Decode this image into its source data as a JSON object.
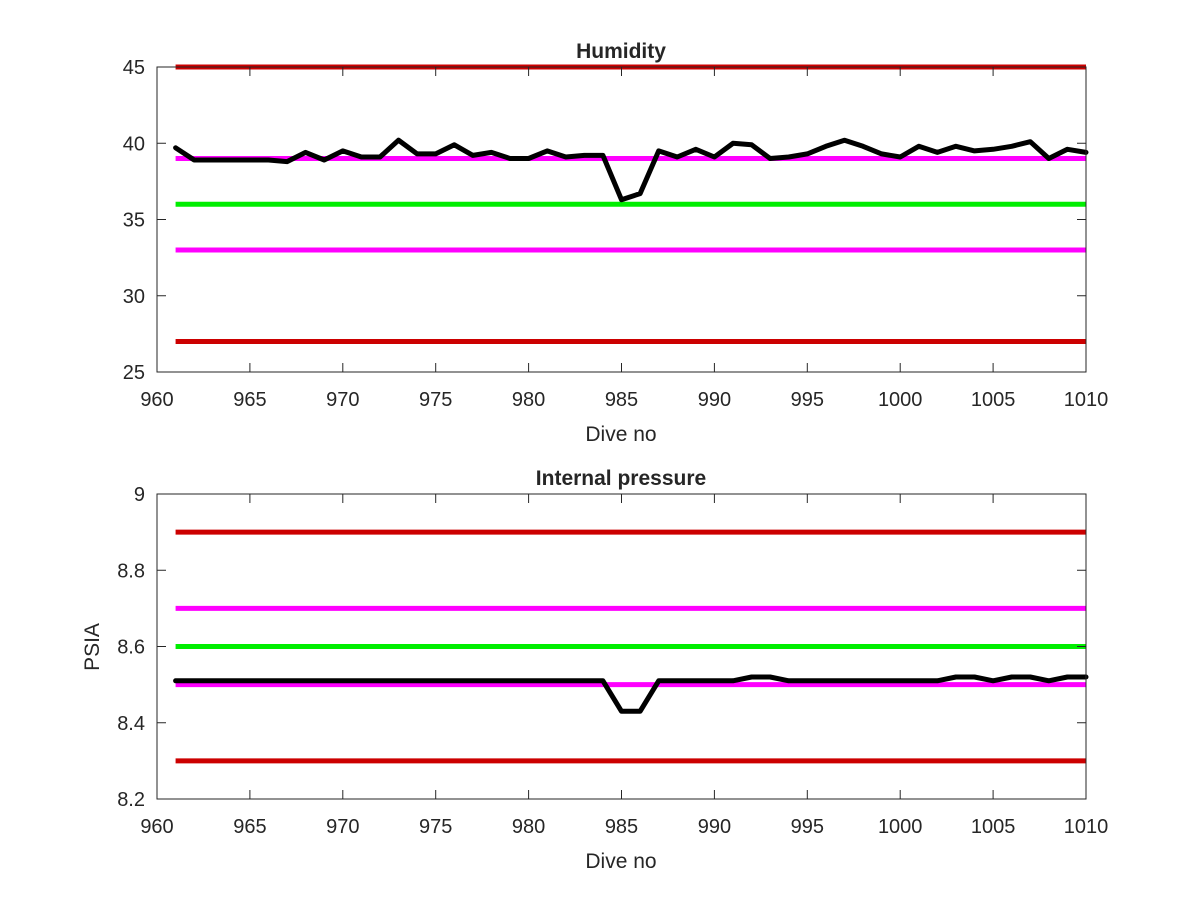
{
  "figure": {
    "background": "#ffffff"
  },
  "chart_data": [
    {
      "type": "line",
      "title": "Humidity",
      "xlabel": "Dive no",
      "ylabel": "",
      "xlim": [
        960,
        1010
      ],
      "ylim": [
        25,
        45
      ],
      "xticks": [
        960,
        965,
        970,
        975,
        980,
        985,
        990,
        995,
        1000,
        1005,
        1010
      ],
      "yticks": [
        25,
        30,
        35,
        40,
        45
      ],
      "grid": false,
      "legend": "none",
      "reference_lines": [
        {
          "y": 45,
          "color": "#cc0000"
        },
        {
          "y": 39,
          "color": "#ff00ff"
        },
        {
          "y": 36,
          "color": "#00ee00"
        },
        {
          "y": 33,
          "color": "#ff00ff"
        },
        {
          "y": 27,
          "color": "#cc0000"
        }
      ],
      "series": [
        {
          "color": "#000000",
          "x": [
            961,
            962,
            963,
            964,
            965,
            966,
            967,
            968,
            969,
            970,
            971,
            972,
            973,
            974,
            975,
            976,
            977,
            978,
            979,
            980,
            981,
            982,
            983,
            984,
            985,
            986,
            987,
            988,
            989,
            990,
            991,
            992,
            993,
            994,
            995,
            996,
            997,
            998,
            999,
            1000,
            1001,
            1002,
            1003,
            1004,
            1005,
            1006,
            1007,
            1008,
            1009,
            1010
          ],
          "y": [
            39.7,
            38.9,
            38.9,
            38.9,
            38.9,
            38.9,
            38.8,
            39.4,
            38.9,
            39.5,
            39.1,
            39.1,
            40.2,
            39.3,
            39.3,
            39.9,
            39.2,
            39.4,
            39.0,
            39.0,
            39.5,
            39.1,
            39.2,
            39.2,
            36.3,
            36.7,
            39.5,
            39.1,
            39.6,
            39.1,
            40.0,
            39.9,
            39.0,
            39.1,
            39.3,
            39.8,
            40.2,
            39.8,
            39.3,
            39.1,
            39.8,
            39.4,
            39.8,
            39.5,
            39.6,
            39.8,
            40.1,
            39.0,
            39.6,
            39.4
          ]
        }
      ]
    },
    {
      "type": "line",
      "title": "Internal pressure",
      "xlabel": "Dive no",
      "ylabel": "PSIA",
      "xlim": [
        960,
        1010
      ],
      "ylim": [
        8.2,
        9.0
      ],
      "xticks": [
        960,
        965,
        970,
        975,
        980,
        985,
        990,
        995,
        1000,
        1005,
        1010
      ],
      "yticks": [
        8.2,
        8.4,
        8.6,
        8.8,
        9.0
      ],
      "ytick_labels": [
        "8.2",
        "8.4",
        "8.6",
        "8.8",
        "9"
      ],
      "grid": false,
      "legend": "none",
      "reference_lines": [
        {
          "y": 8.9,
          "color": "#cc0000"
        },
        {
          "y": 8.7,
          "color": "#ff00ff"
        },
        {
          "y": 8.6,
          "color": "#00ee00"
        },
        {
          "y": 8.5,
          "color": "#ff00ff"
        },
        {
          "y": 8.3,
          "color": "#cc0000"
        }
      ],
      "series": [
        {
          "color": "#000000",
          "x": [
            961,
            962,
            963,
            964,
            965,
            966,
            967,
            968,
            969,
            970,
            971,
            972,
            973,
            974,
            975,
            976,
            977,
            978,
            979,
            980,
            981,
            982,
            983,
            984,
            985,
            986,
            987,
            988,
            989,
            990,
            991,
            992,
            993,
            994,
            995,
            996,
            997,
            998,
            999,
            1000,
            1001,
            1002,
            1003,
            1004,
            1005,
            1006,
            1007,
            1008,
            1009,
            1010
          ],
          "y": [
            8.51,
            8.51,
            8.51,
            8.51,
            8.51,
            8.51,
            8.51,
            8.51,
            8.51,
            8.51,
            8.51,
            8.51,
            8.51,
            8.51,
            8.51,
            8.51,
            8.51,
            8.51,
            8.51,
            8.51,
            8.51,
            8.51,
            8.51,
            8.51,
            8.43,
            8.43,
            8.51,
            8.51,
            8.51,
            8.51,
            8.51,
            8.52,
            8.52,
            8.51,
            8.51,
            8.51,
            8.51,
            8.51,
            8.51,
            8.51,
            8.51,
            8.51,
            8.52,
            8.52,
            8.51,
            8.52,
            8.52,
            8.51,
            8.52,
            8.52
          ]
        }
      ]
    }
  ]
}
